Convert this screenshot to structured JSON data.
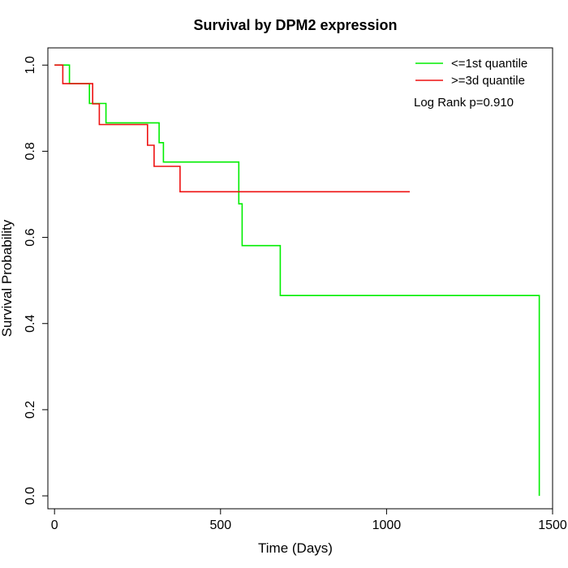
{
  "chart_data": {
    "type": "line",
    "title": "Survival by DPM2 expression",
    "xlabel": "Time (Days)",
    "ylabel": "Survival Probability",
    "xlim": [
      -20,
      1500
    ],
    "ylim": [
      -0.03,
      1.04
    ],
    "xticks": [
      0,
      500,
      1000,
      1500
    ],
    "yticks": [
      0.0,
      0.2,
      0.4,
      0.6,
      0.8,
      1.0
    ],
    "xtick_labels": [
      "0",
      "500",
      "1000",
      "1500"
    ],
    "ytick_labels": [
      "0.0",
      "0.2",
      "0.4",
      "0.6",
      "0.8",
      "1.0"
    ],
    "legend_position": "top-right",
    "annotation": "Log Rank p=0.910",
    "grid": false,
    "series": [
      {
        "name": "<=1st quantile",
        "color": "#00ee00",
        "step": true,
        "points": [
          [
            0,
            1.0
          ],
          [
            45,
            1.0
          ],
          [
            45,
            0.957
          ],
          [
            105,
            0.957
          ],
          [
            105,
            0.911
          ],
          [
            155,
            0.911
          ],
          [
            155,
            0.866
          ],
          [
            315,
            0.866
          ],
          [
            315,
            0.82
          ],
          [
            328,
            0.82
          ],
          [
            328,
            0.775
          ],
          [
            555,
            0.775
          ],
          [
            555,
            0.678
          ],
          [
            565,
            0.678
          ],
          [
            565,
            0.581
          ],
          [
            680,
            0.581
          ],
          [
            680,
            0.465
          ],
          [
            1460,
            0.465
          ],
          [
            1460,
            0.0
          ]
        ]
      },
      {
        "name": ">=3d quantile",
        "color": "#ee1111",
        "step": true,
        "points": [
          [
            0,
            1.0
          ],
          [
            25,
            1.0
          ],
          [
            25,
            0.957
          ],
          [
            115,
            0.957
          ],
          [
            115,
            0.91
          ],
          [
            135,
            0.91
          ],
          [
            135,
            0.862
          ],
          [
            280,
            0.862
          ],
          [
            280,
            0.814
          ],
          [
            300,
            0.814
          ],
          [
            300,
            0.765
          ],
          [
            378,
            0.765
          ],
          [
            378,
            0.706
          ],
          [
            1070,
            0.706
          ]
        ]
      }
    ]
  }
}
